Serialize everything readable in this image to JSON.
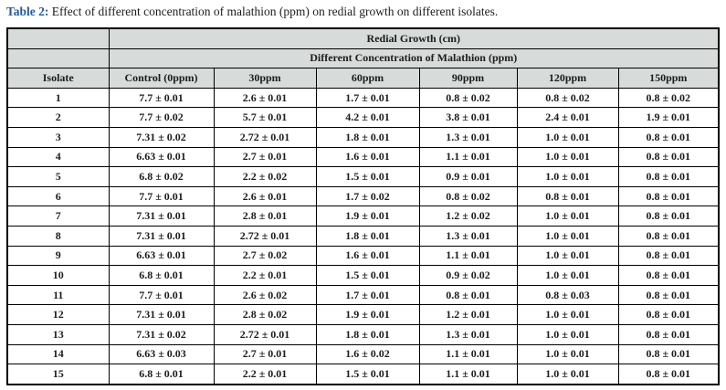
{
  "caption": {
    "label": "Table 2:",
    "text": " Effect of different concentration of malathion (ppm) on redial growth on different isolates."
  },
  "table": {
    "group_header_1": "Redial Growth (cm)",
    "group_header_2": "Different Concentration of Malathion (ppm)",
    "columns": [
      "Isolate",
      "Control (0ppm)",
      "30ppm",
      "60ppm",
      "90ppm",
      "120ppm",
      "150ppm"
    ],
    "rows": [
      {
        "isolate": "1",
        "values": [
          "7.7 ± 0.01",
          "2.6 ± 0.01",
          "1.7 ± 0.01",
          "0.8 ± 0.02",
          "0.8 ± 0.02",
          "0.8 ± 0.02"
        ]
      },
      {
        "isolate": "2",
        "values": [
          "7.7 ± 0.02",
          "5.7 ± 0.01",
          "4.2 ± 0.01",
          "3.8 ± 0.01",
          "2.4 ± 0.01",
          "1.9 ± 0.01"
        ]
      },
      {
        "isolate": "3",
        "values": [
          "7.31 ± 0.02",
          "2.72 ± 0.01",
          "1.8 ± 0.01",
          "1.3 ± 0.01",
          "1.0 ± 0.01",
          "0.8 ± 0.01"
        ]
      },
      {
        "isolate": "4",
        "values": [
          "6.63 ± 0.01",
          "2.7 ± 0.01",
          "1.6 ± 0.01",
          "1.1 ± 0.01",
          "1.0 ± 0.01",
          "0.8 ± 0.01"
        ]
      },
      {
        "isolate": "5",
        "values": [
          "6.8 ± 0.02",
          "2.2 ± 0.02",
          "1.5 ± 0.01",
          "0.9 ± 0.01",
          "1.0 ± 0.01",
          "0.8 ± 0.01"
        ]
      },
      {
        "isolate": "6",
        "values": [
          "7.7 ± 0.01",
          "2.6 ± 0.01",
          "1.7 ± 0.02",
          "0.8 ± 0.02",
          "0.8 ± 0.01",
          "0.8 ± 0.01"
        ]
      },
      {
        "isolate": "7",
        "values": [
          "7.31 ± 0.01",
          "2.8 ± 0.01",
          "1.9 ± 0.01",
          "1.2 ± 0.02",
          "1.0 ± 0.01",
          "0.8 ± 0.01"
        ]
      },
      {
        "isolate": "8",
        "values": [
          "7.31 ± 0.01",
          "2.72 ± 0.01",
          "1.8 ± 0.01",
          "1.3 ± 0.01",
          "1.0 ± 0.01",
          "0.8 ± 0.01"
        ]
      },
      {
        "isolate": "9",
        "values": [
          "6.63 ± 0.01",
          "2.7 ± 0.02",
          "1.6 ± 0.01",
          "1.1 ± 0.01",
          "1.0 ± 0.01",
          "0.8 ± 0.01"
        ]
      },
      {
        "isolate": "10",
        "values": [
          "6.8 ± 0.01",
          "2.2 ± 0.01",
          "1.5 ± 0.01",
          "0.9 ± 0.02",
          "1.0 ± 0.01",
          "0.8 ± 0.01"
        ]
      },
      {
        "isolate": "11",
        "values": [
          "7.7 ± 0.01",
          "2.6 ± 0.02",
          "1.7 ± 0.01",
          "0.8 ± 0.01",
          "0.8 ± 0.03",
          "0.8 ± 0.01"
        ]
      },
      {
        "isolate": "12",
        "values": [
          "7.31 ± 0.01",
          "2.8 ± 0.02",
          "1.9 ± 0.01",
          "1.2 ± 0.01",
          "1.0 ± 0.01",
          "0.8 ± 0.01"
        ]
      },
      {
        "isolate": "13",
        "values": [
          "7.31 ± 0.02",
          "2.72 ± 0.01",
          "1.8 ± 0.01",
          "1.3 ± 0.01",
          "1.0 ± 0.01",
          "0.8 ± 0.01"
        ]
      },
      {
        "isolate": "14",
        "values": [
          "6.63 ± 0.03",
          "2.7 ± 0.01",
          "1.6 ± 0.02",
          "1.1 ± 0.01",
          "1.0 ± 0.01",
          "0.8 ± 0.01"
        ]
      },
      {
        "isolate": "15",
        "values": [
          "6.8 ± 0.01",
          "2.2 ± 0.01",
          "1.5 ± 0.01",
          "1.1 ± 0.01",
          "1.0 ± 0.01",
          "0.8 ± 0.01"
        ]
      }
    ]
  },
  "colors": {
    "accent": "#1f5c9e",
    "header_bg": "#d7dbd9",
    "border": "#000000",
    "text": "#1c1c1c"
  }
}
